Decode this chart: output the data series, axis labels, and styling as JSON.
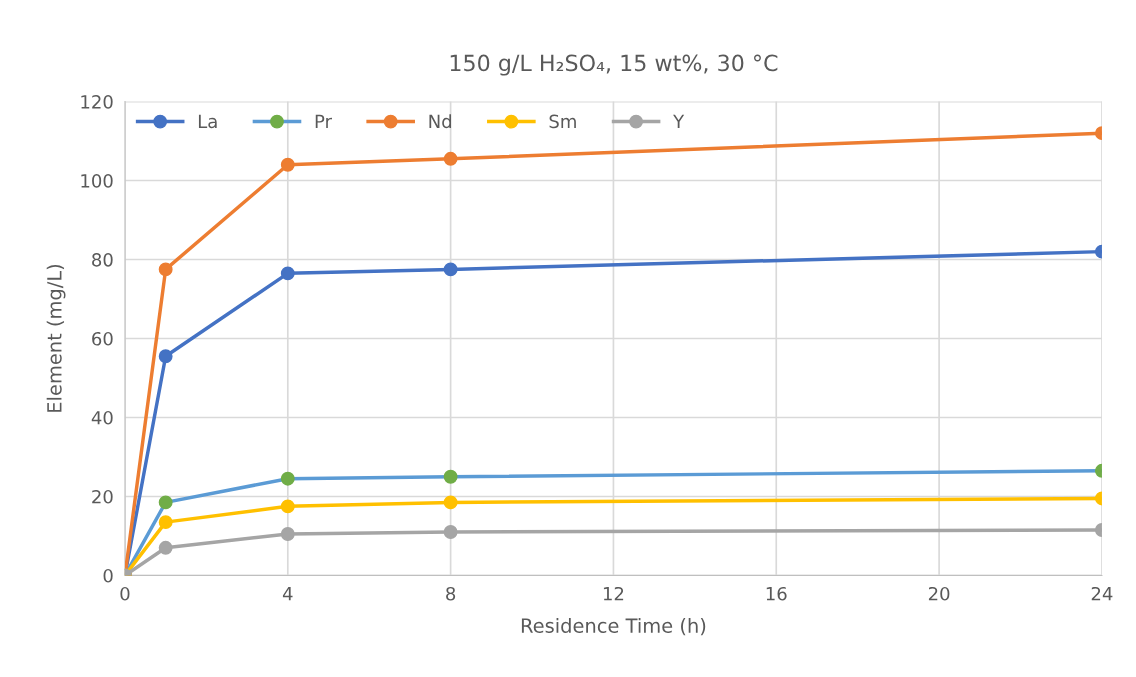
{
  "chart_data": {
    "type": "line",
    "title": "150 g/L H₂SO₄, 15 wt%, 30 °C",
    "xlabel": "Residence Time (h)",
    "ylabel": "Element (mg/L)",
    "x": [
      0,
      1,
      4,
      8,
      24
    ],
    "series": [
      {
        "name": "La",
        "color": "#4472c4",
        "values": [
          0,
          55.5,
          76.5,
          77.5,
          82
        ]
      },
      {
        "name": "Pr",
        "color": "#5b9bd5",
        "colors": [
          "#70ad47",
          "#70ad47",
          "#70ad47",
          "#70ad47",
          "#70ad47"
        ],
        "values": [
          0,
          18.5,
          24.5,
          25,
          26.5
        ]
      },
      {
        "name": "Nd",
        "color": "#ed7d31",
        "values": [
          0,
          77.5,
          104,
          105.5,
          112
        ]
      },
      {
        "name": "Sm",
        "color": "#ffc000",
        "values": [
          0,
          13.5,
          17.5,
          18.5,
          19.5
        ]
      },
      {
        "name": "Y",
        "color": "#a5a5a5",
        "values": [
          0,
          7,
          10.5,
          11,
          11.5
        ]
      }
    ],
    "xlim": [
      0,
      24
    ],
    "xticks": [
      0,
      4,
      8,
      12,
      16,
      20,
      24
    ],
    "ylim": [
      0,
      120
    ],
    "yticks": [
      0,
      20,
      40,
      60,
      80,
      100,
      120
    ],
    "grid": true,
    "legend": "top left",
    "marker": "circle",
    "line_style": "solid"
  }
}
